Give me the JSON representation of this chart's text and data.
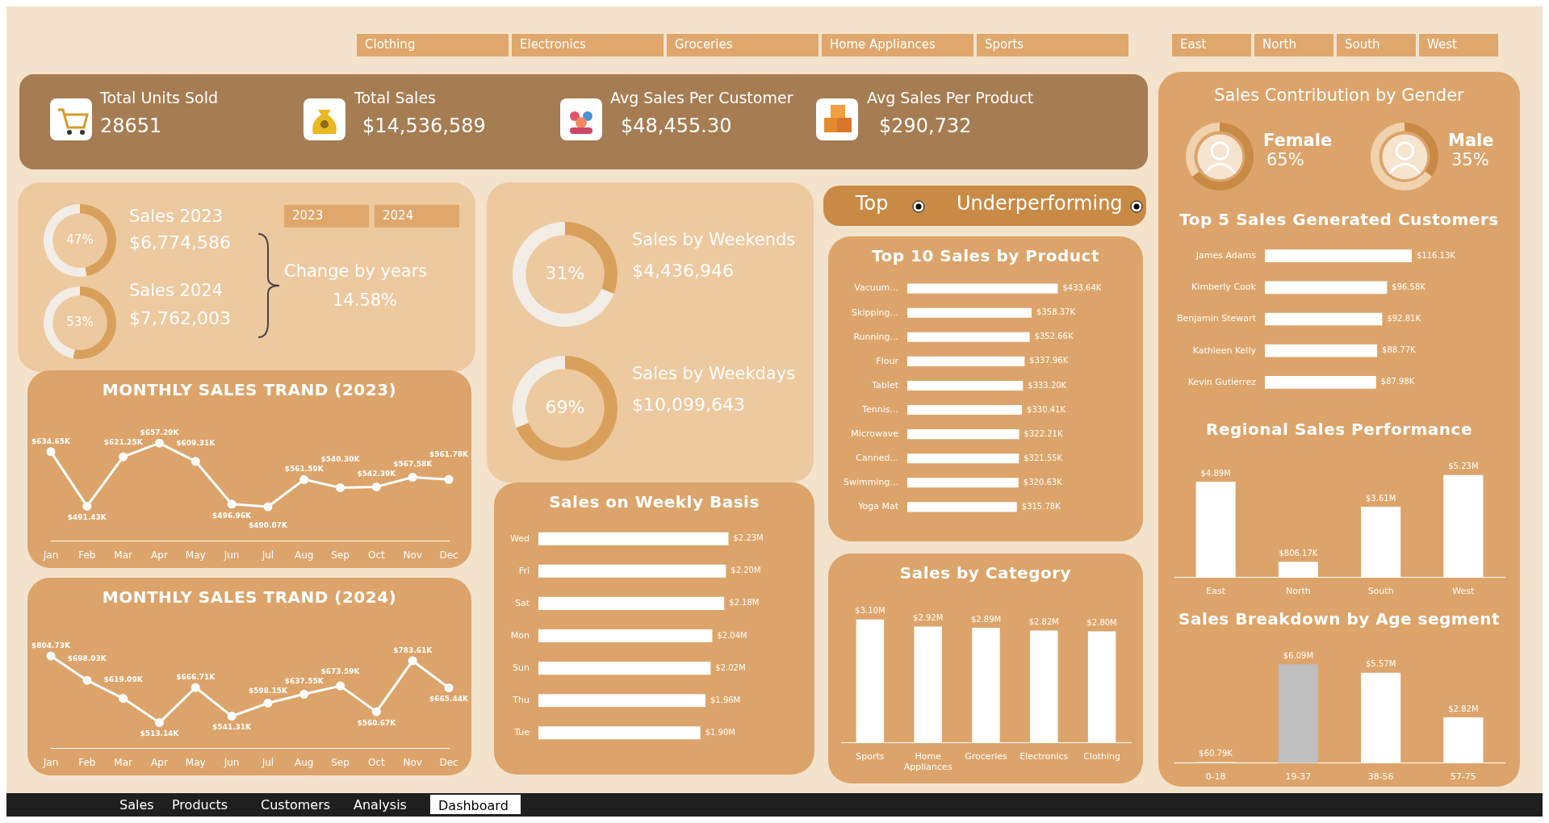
{
  "chart_data": [
    {
      "type": "other",
      "annotations": [
        "Clothing",
        "Electronics",
        "Groceries",
        "Home Appliances",
        "Sports",
        "East",
        "North",
        "South",
        "West"
      ]
    },
    {
      "type": "other",
      "annotations": [
        "Total Units Sold",
        "28651",
        "Total Sales",
        "$14,536,589",
        "Avg Sales Per Customer",
        "$48,455.30",
        "Avg Sales Per Product",
        "$290,732"
      ]
    },
    {
      "type": "other",
      "annotations": [
        "2023",
        "2024",
        "Sales 2023",
        "$6,774,586",
        "Sales 2024",
        "$7,762,003",
        "Change by years",
        "14.58%"
      ]
    },
    {
      "type": "donut",
      "categories": [
        null,
        null
      ],
      "values": [
        47,
        53
      ],
      "colors": [
        "#d9a05b",
        "#f3ede7"
      ],
      "value_labels": [
        "47%",
        null
      ]
    },
    {
      "type": "donut",
      "categories": [
        null,
        null
      ],
      "values": [
        53,
        47
      ],
      "colors": [
        "#d9a05b",
        "#f3ede7"
      ],
      "value_labels": [
        "53%",
        null
      ]
    },
    {
      "type": "line",
      "title": "MONTHLY SALES TRAND (2023)",
      "categories": [
        "Jan",
        "Feb",
        "Mar",
        "Apr",
        "May",
        "Jun",
        "Jul",
        "Aug",
        "Sep",
        "Oct",
        "Nov",
        "Dec"
      ],
      "values": [
        634.65,
        491.43,
        621.25,
        657.29,
        609.31,
        496.96,
        490.07,
        561.59,
        540.3,
        542.39,
        567.58,
        561.78
      ],
      "color": "#ffffff",
      "marker": "circle",
      "value_labels": [
        "$634.65K",
        "$491.43K",
        "$621.25K",
        "$657.29K",
        "$609.31K",
        "$496.96K",
        "$490.07K",
        "$561.59K",
        "$540.30K",
        "$542.39K",
        "$567.58K",
        "$561.78K"
      ]
    },
    {
      "type": "line",
      "title": "MONTHLY SALES TRAND (2024)",
      "categories": [
        "Jan",
        "Feb",
        "Mar",
        "Apr",
        "May",
        "Jun",
        "Jul",
        "Aug",
        "Sep",
        "Oct",
        "Nov",
        "Dec"
      ],
      "values": [
        804.73,
        698.03,
        619.09,
        513.14,
        666.71,
        541.31,
        598.15,
        637.55,
        673.59,
        560.67,
        783.61,
        665.44
      ],
      "color": "#ffffff",
      "marker": "circle",
      "value_labels": [
        "$804.73K",
        "$698.03K",
        "$619.09K",
        "$513.14K",
        "$666.71K",
        "$541.31K",
        "$598.15K",
        "$637.55K",
        "$673.59K",
        "$560.67K",
        "$783.61K",
        "$665.44K"
      ]
    },
    {
      "type": "donut",
      "title": "Sales by Weekends",
      "categories": [
        null,
        null
      ],
      "values": [
        31,
        69
      ],
      "colors": [
        "#d9a05b",
        "#f3ede7"
      ],
      "value_labels": [
        "31%",
        null
      ],
      "annotations": [
        "$4,436,946"
      ]
    },
    {
      "type": "donut",
      "title": "Sales by Weekdays",
      "categories": [
        null,
        null
      ],
      "values": [
        69,
        31
      ],
      "colors": [
        "#d9a05b",
        "#f3ede7"
      ],
      "value_labels": [
        "69%",
        null
      ],
      "annotations": [
        "$10,099,643"
      ]
    },
    {
      "type": "bar",
      "orientation": "horizontal",
      "title": "Sales on Weekly Basis",
      "categories": [
        "Wed",
        "Fri",
        "Sat",
        "Mon",
        "Sun",
        "Thu",
        "Tue"
      ],
      "values": [
        2.23,
        2.2,
        2.18,
        2.04,
        2.02,
        1.96,
        1.9
      ],
      "color": "#ffffff",
      "value_labels": [
        "$2.23M",
        "$2.20M",
        "$2.18M",
        "$2.04M",
        "$2.02M",
        "$1.96M",
        "$1.90M"
      ]
    },
    {
      "type": "other",
      "annotations": [
        "Top",
        "Underperforming"
      ]
    },
    {
      "type": "bar",
      "orientation": "horizontal",
      "title": "Top 10 Sales by Product",
      "categories": [
        "Vacuum...",
        "Skipping...",
        "Running...",
        "Flour",
        "Tablet",
        "Tennis...",
        "Microwave",
        "Canned...",
        "Swimming...",
        "Yoga Mat"
      ],
      "values": [
        433.64,
        358.37,
        352.66,
        337.96,
        333.2,
        330.41,
        322.21,
        321.55,
        320.63,
        315.78
      ],
      "color": "#ffffff",
      "value_labels": [
        "$433.64K",
        "$358.37K",
        "$352.66K",
        "$337.96K",
        "$333.20K",
        "$330.41K",
        "$322.21K",
        "$321.55K",
        "$320.63K",
        "$315.78K"
      ]
    },
    {
      "type": "bar",
      "title": "Sales by Category",
      "categories": [
        "Sports",
        "Home Appliances",
        "Groceries",
        "Electronics",
        "Clothing"
      ],
      "values": [
        3.1,
        2.92,
        2.89,
        2.82,
        2.8
      ],
      "color": "#ffffff",
      "value_labels": [
        "$3.10M",
        "$2.92M",
        "$2.89M",
        "$2.82M",
        "$2.80M"
      ]
    },
    {
      "type": "donut",
      "title": "Sales Contribution by Gender",
      "categories": [
        "Female",
        null
      ],
      "values": [
        65,
        35
      ],
      "colors": [
        "#c98a45",
        "#f0d2ad"
      ],
      "value_labels": [
        "65%",
        null
      ]
    },
    {
      "type": "donut",
      "categories": [
        "Male",
        null
      ],
      "values": [
        35,
        65
      ],
      "colors": [
        "#c98a45",
        "#f0d2ad"
      ],
      "value_labels": [
        "35%",
        null
      ]
    },
    {
      "type": "bar",
      "orientation": "horizontal",
      "title": "Top 5 Sales Generated Customers",
      "categories": [
        "James Adams",
        "Kimberly Cook",
        "Benjamin Stewart",
        "Kathleen Kelly",
        "Kevin Gutierrez"
      ],
      "values": [
        116.13,
        96.58,
        92.81,
        88.77,
        87.98
      ],
      "color": "#ffffff",
      "value_labels": [
        "$116.13K",
        "$96.58K",
        "$92.81K",
        "$88.77K",
        "$87.98K"
      ]
    },
    {
      "type": "bar",
      "title": "Regional Sales Performance",
      "categories": [
        "East",
        "North",
        "South",
        "West"
      ],
      "values": [
        4890000,
        806170,
        3610000,
        5230000
      ],
      "color": "#ffffff",
      "value_labels": [
        "$4.89M",
        "$806.17K",
        "$3.61M",
        "$5.23M"
      ]
    },
    {
      "type": "bar",
      "title": "Sales Breakdown by Age segment",
      "categories": [
        "0-18",
        "19-37",
        "38-56",
        "57-75"
      ],
      "values": [
        60790,
        6090000,
        5570000,
        2820000
      ],
      "colors": [
        "#ffffff",
        "#bfbfbf",
        "#ffffff",
        "#ffffff"
      ],
      "value_labels": [
        "$60.79K",
        "$6.09M",
        "$5.57M",
        "$2.82M"
      ]
    },
    {
      "type": "other",
      "annotations": [
        "Sales",
        "Products",
        "Customers",
        "Analysis",
        "Dashboard"
      ]
    }
  ]
}
